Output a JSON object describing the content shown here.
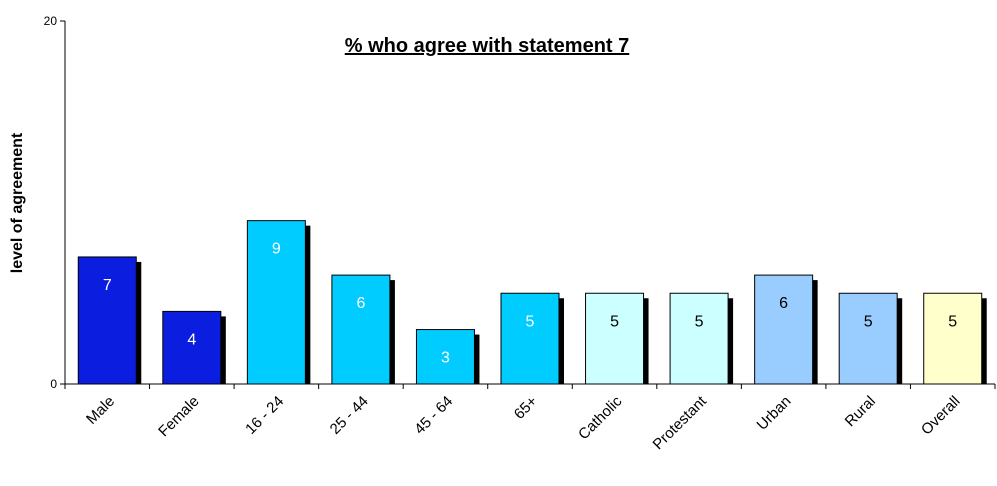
{
  "chart_data": {
    "type": "bar",
    "title": "% who agree with statement 7",
    "ylabel": "level of agreement",
    "xlabel": "",
    "ylim": [
      0,
      20
    ],
    "yticks": [
      0,
      20
    ],
    "grid": false,
    "categories": [
      "Male",
      "Female",
      "16 - 24",
      "25 - 44",
      "45 - 64",
      "65+",
      "Catholic",
      "Protestant",
      "Urban",
      "Rural",
      "Overall"
    ],
    "values": [
      7,
      4,
      9,
      6,
      3,
      5,
      5,
      5,
      6,
      5,
      5
    ],
    "bar_colors": [
      "#0b1ee0",
      "#0b1ee0",
      "#00ccff",
      "#00ccff",
      "#00ccff",
      "#00ccff",
      "#ccffff",
      "#ccffff",
      "#99ccff",
      "#99ccff",
      "#ffffcc"
    ],
    "label_colors": [
      "#ffffff",
      "#ffffff",
      "#ffffff",
      "#ffffff",
      "#ffffff",
      "#ffffff",
      "#000000",
      "#000000",
      "#000000",
      "#000000",
      "#000000"
    ],
    "shadow_color": "#000000"
  }
}
